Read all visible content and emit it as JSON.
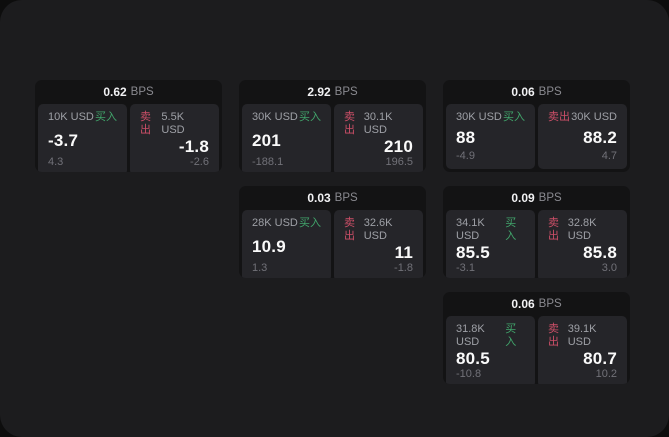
{
  "colors": {
    "buy": "#41a56b",
    "sell": "#cd4f68",
    "page-bg": "#1c1c1e",
    "card-bg": "#131314",
    "pane-bg": "#252529"
  },
  "labels": {
    "bps_unit": "BPS",
    "buy": "买入",
    "sell": "卖出"
  },
  "cards": [
    {
      "bps": "0.62",
      "buy": {
        "size": "10K USD",
        "price": "-3.7",
        "sub": "4.3"
      },
      "sell": {
        "size": "5.5K USD",
        "price": "-1.8",
        "sub": "-2.6"
      }
    },
    {
      "bps": "2.92",
      "buy": {
        "size": "30K USD",
        "price": "201",
        "sub": "-188.1"
      },
      "sell": {
        "size": "30.1K USD",
        "price": "210",
        "sub": "196.5"
      }
    },
    {
      "bps": "0.06",
      "buy": {
        "size": "30K USD",
        "price": "88",
        "sub": "-4.9"
      },
      "sell": {
        "size": "30K USD",
        "price": "88.2",
        "sub": "4.7"
      }
    },
    {
      "bps": "0.03",
      "buy": {
        "size": "28K USD",
        "price": "10.9",
        "sub": "1.3"
      },
      "sell": {
        "size": "32.6K USD",
        "price": "11",
        "sub": "-1.8"
      }
    },
    {
      "bps": "0.09",
      "buy": {
        "size": "34.1K USD",
        "price": "85.5",
        "sub": "-3.1"
      },
      "sell": {
        "size": "32.8K USD",
        "price": "85.8",
        "sub": "3.0"
      }
    },
    {
      "bps": "0.06",
      "buy": {
        "size": "31.8K USD",
        "price": "80.5",
        "sub": "-10.8"
      },
      "sell": {
        "size": "39.1K USD",
        "price": "80.7",
        "sub": "10.2"
      }
    }
  ]
}
